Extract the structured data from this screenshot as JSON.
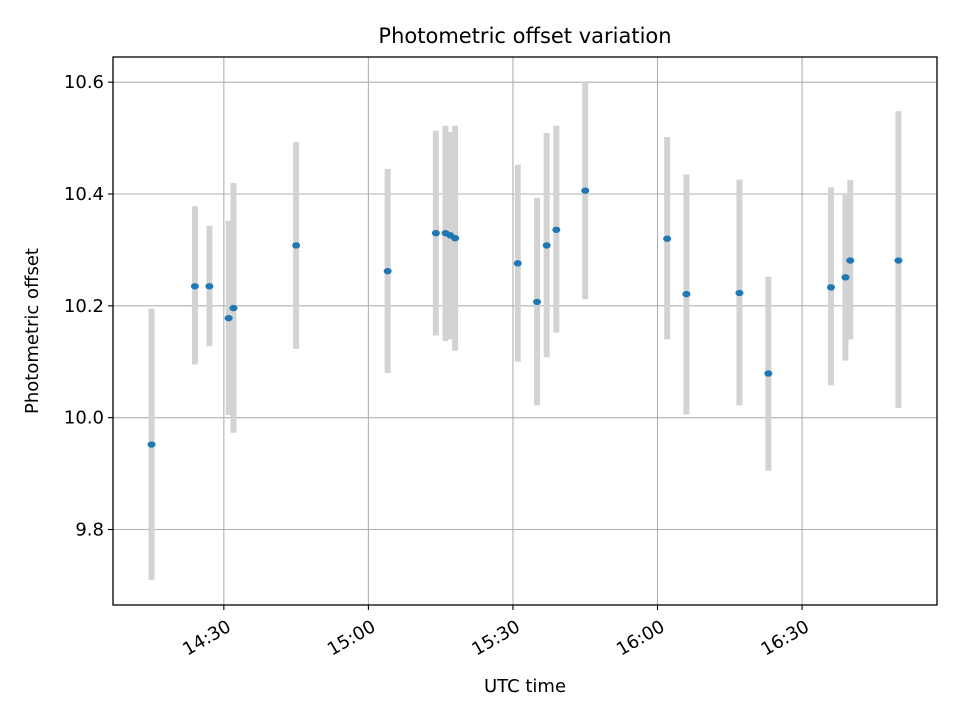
{
  "chart_data": {
    "type": "scatter",
    "title": "Photometric offset variation",
    "xlabel": "UTC time",
    "ylabel": "Photometric offset",
    "x_tick_labels": [
      "14:30",
      "15:00",
      "15:30",
      "16:00",
      "16:30"
    ],
    "x_tick_values": [
      "14:30",
      "15:00",
      "15:30",
      "16:00",
      "16:30"
    ],
    "y_tick_labels": [
      "9.8",
      "10.0",
      "10.2",
      "10.4",
      "10.6"
    ],
    "y_tick_values": [
      9.8,
      10.0,
      10.2,
      10.4,
      10.6
    ],
    "xlim": [
      "14:07",
      "16:58"
    ],
    "ylim": [
      9.665,
      10.645
    ],
    "grid": true,
    "marker_color": "#1f77b4",
    "errorbar_color": "#d3d3d3",
    "points": [
      {
        "x": "14:15",
        "y": 9.952,
        "yerr_low": 9.71,
        "yerr_high": 10.195
      },
      {
        "x": "14:24",
        "y": 10.235,
        "yerr_low": 10.095,
        "yerr_high": 10.378
      },
      {
        "x": "14:27",
        "y": 10.235,
        "yerr_low": 10.128,
        "yerr_high": 10.343
      },
      {
        "x": "14:31",
        "y": 10.178,
        "yerr_low": 10.005,
        "yerr_high": 10.352
      },
      {
        "x": "14:32",
        "y": 10.196,
        "yerr_low": 9.973,
        "yerr_high": 10.42
      },
      {
        "x": "14:45",
        "y": 10.308,
        "yerr_low": 10.123,
        "yerr_high": 10.493
      },
      {
        "x": "15:04",
        "y": 10.262,
        "yerr_low": 10.08,
        "yerr_high": 10.445
      },
      {
        "x": "15:14",
        "y": 10.33,
        "yerr_low": 10.147,
        "yerr_high": 10.513
      },
      {
        "x": "15:16",
        "y": 10.33,
        "yerr_low": 10.137,
        "yerr_high": 10.522
      },
      {
        "x": "15:17",
        "y": 10.326,
        "yerr_low": 10.14,
        "yerr_high": 10.511
      },
      {
        "x": "15:18",
        "y": 10.321,
        "yerr_low": 10.12,
        "yerr_high": 10.522
      },
      {
        "x": "15:31",
        "y": 10.276,
        "yerr_low": 10.1,
        "yerr_high": 10.452
      },
      {
        "x": "15:35",
        "y": 10.207,
        "yerr_low": 10.022,
        "yerr_high": 10.393
      },
      {
        "x": "15:37",
        "y": 10.308,
        "yerr_low": 10.108,
        "yerr_high": 10.509
      },
      {
        "x": "15:39",
        "y": 10.336,
        "yerr_low": 10.152,
        "yerr_high": 10.522
      },
      {
        "x": "15:45",
        "y": 10.406,
        "yerr_low": 10.212,
        "yerr_high": 10.6
      },
      {
        "x": "16:02",
        "y": 10.32,
        "yerr_low": 10.14,
        "yerr_high": 10.502
      },
      {
        "x": "16:06",
        "y": 10.221,
        "yerr_low": 10.006,
        "yerr_high": 10.435
      },
      {
        "x": "16:17",
        "y": 10.223,
        "yerr_low": 10.022,
        "yerr_high": 10.426
      },
      {
        "x": "16:23",
        "y": 10.079,
        "yerr_low": 9.905,
        "yerr_high": 10.252
      },
      {
        "x": "16:36",
        "y": 10.233,
        "yerr_low": 10.058,
        "yerr_high": 10.412
      },
      {
        "x": "16:39",
        "y": 10.251,
        "yerr_low": 10.102,
        "yerr_high": 10.4
      },
      {
        "x": "16:40",
        "y": 10.281,
        "yerr_low": 10.14,
        "yerr_high": 10.425
      },
      {
        "x": "16:50",
        "y": 10.281,
        "yerr_low": 10.017,
        "yerr_high": 10.548
      }
    ]
  }
}
